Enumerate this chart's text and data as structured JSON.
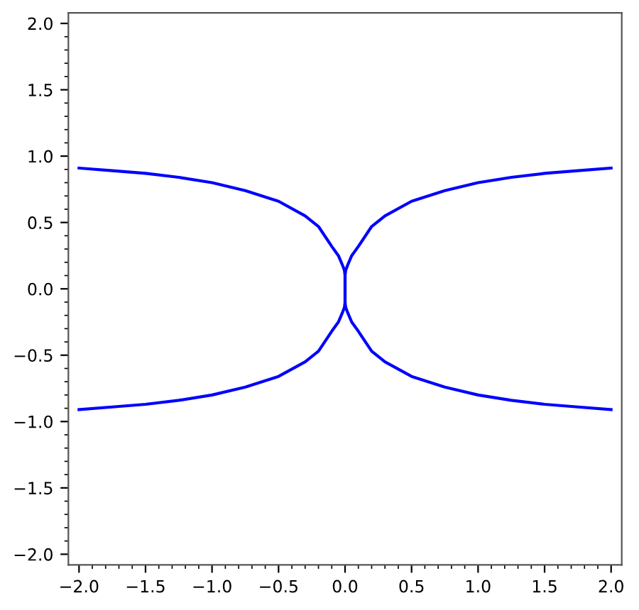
{
  "chart_data": {
    "type": "line",
    "xlim": [
      -2.08,
      2.08
    ],
    "ylim": [
      -2.08,
      2.08
    ],
    "xticks": [
      {
        "value": -2.0,
        "label": "−2.0"
      },
      {
        "value": -1.5,
        "label": "−1.5"
      },
      {
        "value": -1.0,
        "label": "−1.0"
      },
      {
        "value": -0.5,
        "label": "−0.5"
      },
      {
        "value": 0.0,
        "label": "0.0"
      },
      {
        "value": 0.5,
        "label": "0.5"
      },
      {
        "value": 1.0,
        "label": "1.0"
      },
      {
        "value": 1.5,
        "label": "1.5"
      },
      {
        "value": 2.0,
        "label": "2.0"
      }
    ],
    "yticks": [
      {
        "value": -2.0,
        "label": "−2.0"
      },
      {
        "value": -1.5,
        "label": "−1.5"
      },
      {
        "value": -1.0,
        "label": "−1.0"
      },
      {
        "value": -0.5,
        "label": "−0.5"
      },
      {
        "value": 0.0,
        "label": "0.0"
      },
      {
        "value": 0.5,
        "label": "0.5"
      },
      {
        "value": 1.0,
        "label": "1.0"
      },
      {
        "value": 1.5,
        "label": "1.5"
      },
      {
        "value": 2.0,
        "label": "2.0"
      }
    ],
    "marker": "none",
    "line_style": "solid",
    "series": [
      {
        "color": "#0000ff",
        "x": [
          2.0,
          1.75,
          1.5,
          1.25,
          1.0,
          0.75,
          0.5,
          0.3,
          0.2,
          0.1,
          0.05,
          0.02,
          0.005,
          0,
          0,
          0.005,
          0.02,
          0.05,
          0.1,
          0.2,
          0.3,
          0.5,
          0.75,
          1.0,
          1.25,
          1.5,
          1.75,
          2.0
        ],
        "values": [
          0.91,
          0.89,
          0.87,
          0.84,
          0.8,
          0.74,
          0.66,
          0.55,
          0.47,
          0.32,
          0.25,
          0.18,
          0.14,
          0.1,
          -0.1,
          -0.14,
          -0.18,
          -0.25,
          -0.32,
          -0.47,
          -0.55,
          -0.66,
          -0.74,
          -0.8,
          -0.84,
          -0.87,
          -0.89,
          -0.91
        ]
      },
      {
        "color": "#0000ff",
        "x": [
          -2.0,
          -1.75,
          -1.5,
          -1.25,
          -1.0,
          -0.75,
          -0.5,
          -0.3,
          -0.2,
          -0.1,
          -0.05,
          -0.02,
          -0.005,
          0,
          0,
          -0.005,
          -0.02,
          -0.05,
          -0.1,
          -0.2,
          -0.3,
          -0.5,
          -0.75,
          -1.0,
          -1.25,
          -1.5,
          -1.75,
          -2.0
        ],
        "values": [
          0.91,
          0.89,
          0.87,
          0.84,
          0.8,
          0.74,
          0.66,
          0.55,
          0.47,
          0.32,
          0.25,
          0.18,
          0.14,
          0.1,
          -0.1,
          -0.14,
          -0.18,
          -0.25,
          -0.32,
          -0.47,
          -0.55,
          -0.66,
          -0.74,
          -0.8,
          -0.84,
          -0.87,
          -0.89,
          -0.91
        ]
      }
    ]
  }
}
